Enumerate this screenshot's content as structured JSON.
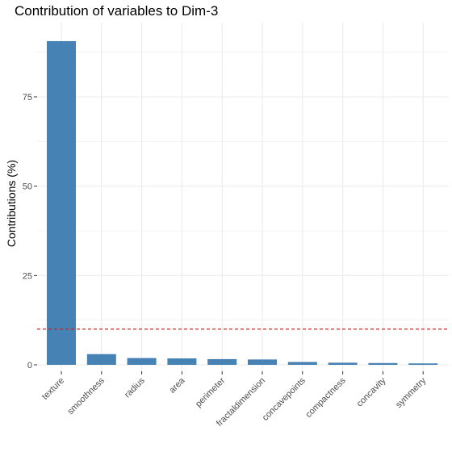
{
  "chart_data": {
    "type": "bar",
    "title": "Contribution of variables to Dim-3",
    "xlabel": "",
    "ylabel": "Contributions (%)",
    "categories": [
      "texture",
      "smoothness",
      "radius",
      "area",
      "perimeter",
      "fractaldimension",
      "concavepoints",
      "compactness",
      "concavity",
      "symmetry"
    ],
    "values": [
      90.6,
      3.0,
      1.9,
      1.8,
      1.6,
      1.5,
      0.8,
      0.6,
      0.5,
      0.4
    ],
    "reference_line": 10,
    "ylim": [
      0,
      92
    ],
    "yticks": [
      0,
      25,
      50,
      75
    ],
    "grid": true,
    "colors": {
      "bar": "#4682B4",
      "reference_line": "#CC2222",
      "grid": "#ebebeb",
      "tick": "#333333"
    }
  }
}
